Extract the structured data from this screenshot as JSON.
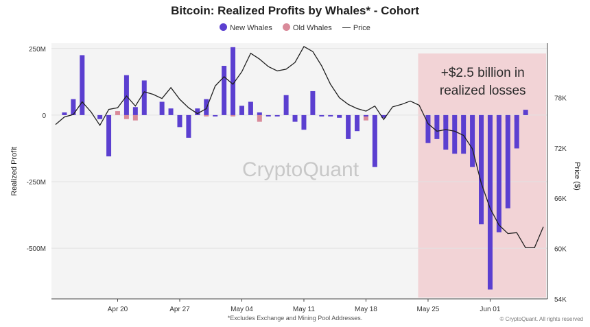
{
  "chart_data": {
    "type": "bar",
    "title": "Bitcoin: Realized Profits by Whales* - Cohort",
    "footnote": "*Excludes Exchange and Mining Pool Addresses.",
    "copyright": "© CryptoQuant. All rights reserved",
    "watermark": "CryptoQuant",
    "ylabel": "Realized Profit",
    "y2label": "Price ($)",
    "ylim": [
      -690,
      270
    ],
    "y2lim": [
      54000,
      84500
    ],
    "y_ticks": [
      {
        "v": 250,
        "label": "250M"
      },
      {
        "v": 0,
        "label": "0"
      },
      {
        "v": -250,
        "label": "-250M"
      },
      {
        "v": -500,
        "label": "-500M"
      }
    ],
    "y2_ticks": [
      {
        "v": 78000,
        "label": "78K"
      },
      {
        "v": 72000,
        "label": "72K"
      },
      {
        "v": 66000,
        "label": "66K"
      },
      {
        "v": 60000,
        "label": "60K"
      },
      {
        "v": 54000,
        "label": "54K"
      }
    ],
    "x_ticks": [
      {
        "day": 7,
        "label": "Apr 20"
      },
      {
        "day": 14,
        "label": "Apr 27"
      },
      {
        "day": 21,
        "label": "May 04"
      },
      {
        "day": 28,
        "label": "May 11"
      },
      {
        "day": 35,
        "label": "May 18"
      },
      {
        "day": 42,
        "label": "May 25"
      },
      {
        "day": 49,
        "label": "Jun 01"
      }
    ],
    "x_range": [
      0,
      55
    ],
    "legend": [
      "New Whales",
      "Old Whales",
      "Price"
    ],
    "colors": {
      "new_whales": "#5b3fd0",
      "old_whales": "#d98a9a",
      "price": "#1f1f1f",
      "highlight": "#f2d3d6"
    },
    "annotation": {
      "lines": [
        "+$2.5 billion in",
        "realized losses"
      ],
      "from_day": 41.5,
      "to_day": 55
    },
    "series": [
      {
        "name": "New Whales",
        "x": [
          1,
          2,
          3,
          5,
          6,
          8,
          9,
          10,
          12,
          13,
          14,
          15,
          16,
          17,
          18,
          19,
          20,
          21,
          22,
          23,
          24,
          25,
          26,
          27,
          28,
          29,
          30,
          31,
          32,
          33,
          34,
          35,
          36,
          37,
          38,
          39,
          40,
          42,
          43,
          44,
          45,
          46,
          47,
          48,
          49,
          50,
          51,
          52,
          53,
          54,
          55
        ],
        "values": [
          10,
          60,
          225,
          -15,
          -155,
          150,
          30,
          130,
          50,
          25,
          -45,
          -85,
          25,
          60,
          -5,
          185,
          255,
          35,
          50,
          10,
          -5,
          -5,
          75,
          -25,
          -55,
          90,
          -5,
          -5,
          -10,
          -90,
          -60,
          -5,
          -195,
          -10,
          0,
          0,
          0,
          -105,
          -90,
          -130,
          -145,
          -145,
          -195,
          -410,
          -655,
          -440,
          -350,
          -125,
          20,
          0,
          0
        ],
        "note": "values in $M; negative bars are realized losses"
      },
      {
        "name": "Old Whales",
        "x": [
          1,
          2,
          4,
          7,
          8,
          9,
          15,
          16,
          17,
          20,
          23,
          35,
          43,
          44,
          45,
          46,
          47,
          48,
          49,
          50,
          51,
          52,
          53
        ],
        "values": [
          5,
          20,
          0,
          15,
          -15,
          -20,
          -15,
          15,
          -5,
          -5,
          -25,
          -20,
          -20,
          -25,
          -20,
          -20,
          -25,
          -25,
          -25,
          -25,
          -25,
          -25,
          10
        ]
      },
      {
        "name": "Price",
        "x": [
          0,
          1,
          2,
          3,
          4,
          5,
          6,
          7,
          8,
          9,
          10,
          11,
          12,
          13,
          14,
          15,
          16,
          17,
          18,
          19,
          20,
          21,
          22,
          23,
          24,
          25,
          26,
          27,
          28,
          29,
          30,
          31,
          32,
          33,
          34,
          35,
          36,
          37,
          38,
          39,
          40,
          41,
          42,
          43,
          44,
          45,
          46,
          47,
          48,
          49,
          50,
          51,
          52,
          53,
          54,
          55
        ],
        "values": [
          74800,
          75700,
          76000,
          77500,
          76300,
          74700,
          76600,
          76800,
          78200,
          77000,
          78700,
          78400,
          77900,
          79200,
          77800,
          76800,
          76100,
          76700,
          79400,
          80500,
          79600,
          81100,
          83300,
          82600,
          81700,
          81200,
          81400,
          82200,
          84100,
          83500,
          81800,
          79600,
          78000,
          77200,
          76700,
          76400,
          77000,
          75400,
          76900,
          77200,
          77600,
          77100,
          74900,
          74000,
          74200,
          74000,
          73500,
          71900,
          67800,
          64800,
          62800,
          61800,
          61900,
          60100,
          60100,
          62600
        ]
      }
    ]
  }
}
